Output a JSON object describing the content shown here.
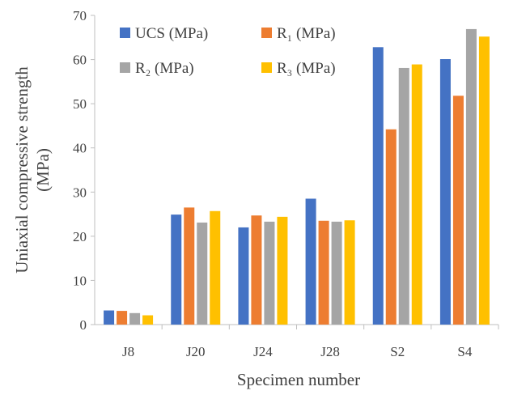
{
  "chart_data": {
    "type": "bar",
    "title": "",
    "xlabel": "Specimen number",
    "ylabel": "Uniaxial compressive strength (MPa)",
    "ylabel_lines": [
      "Uniaxial compressive strength",
      "(MPa)"
    ],
    "ylim": [
      0,
      70
    ],
    "yticks": [
      0,
      10,
      20,
      30,
      40,
      50,
      60,
      70
    ],
    "grid": false,
    "legend_position": "top-inside",
    "categories": [
      "J8",
      "J20",
      "J24",
      "J28",
      "S2",
      "S4"
    ],
    "series": [
      {
        "name": "UCS (MPa)",
        "color": "#4472C4",
        "values": [
          3.2,
          24.9,
          22.0,
          28.5,
          62.8,
          60.1
        ]
      },
      {
        "name": "R₁ (MPa)",
        "color": "#ED7D31",
        "values": [
          3.1,
          26.5,
          24.7,
          23.5,
          44.2,
          51.8
        ]
      },
      {
        "name": "R₂ (MPa)",
        "color": "#A5A5A5",
        "values": [
          2.6,
          23.1,
          23.3,
          23.3,
          58.1,
          66.9
        ]
      },
      {
        "name": "R₃ (MPa)",
        "color": "#FFC000",
        "values": [
          2.1,
          25.7,
          24.4,
          23.6,
          58.9,
          65.2
        ]
      }
    ]
  }
}
